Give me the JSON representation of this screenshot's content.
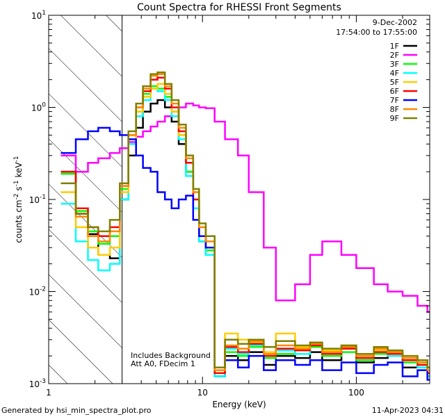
{
  "chart_data": {
    "type": "line",
    "title": "Count Spectra for RHESSI Front Segments",
    "xlabel": "Energy (keV)",
    "ylabel": "counts cm",
    "ylabel_sup1": "-2",
    "ylabel_mid": " s",
    "ylabel_sup2": "-1",
    "ylabel_end": " keV",
    "ylabel_sup3": "-1",
    "xscale": "log",
    "yscale": "log",
    "xlim": [
      1,
      300
    ],
    "ylim": [
      0.001,
      10
    ],
    "x_ticks": [
      {
        "value": 1,
        "label": "1"
      },
      {
        "value": 10,
        "label": "10"
      },
      {
        "value": 100,
        "label": "100"
      }
    ],
    "y_ticks": [
      {
        "value": 0.001,
        "base": "10",
        "exp": "-3"
      },
      {
        "value": 0.01,
        "base": "10",
        "exp": "-2"
      },
      {
        "value": 0.1,
        "base": "10",
        "exp": "-1"
      },
      {
        "value": 1,
        "base": "10",
        "exp": "0"
      },
      {
        "value": 10,
        "base": "10",
        "exp": "1"
      }
    ],
    "shaded_region": [
      1,
      3
    ],
    "date": "9-Dec-2002",
    "time_range": "17:54:00 to 17:55:00",
    "annotations": [
      "Includes Background",
      "Att A0, FDecim 1"
    ],
    "footer_left": "Generated by hsi_min_spectra_plot.pro",
    "footer_right": "11-Apr-2023 04:31",
    "series": [
      {
        "name": "1F",
        "color": "#000000",
        "x": [
          1.2,
          1.5,
          1.8,
          2.1,
          2.5,
          2.9,
          3.3,
          3.7,
          4.1,
          4.6,
          5.1,
          5.7,
          6.3,
          7.0,
          7.8,
          8.7,
          9.5,
          10.5,
          12,
          14,
          17,
          20,
          25,
          30,
          40,
          50,
          60,
          80,
          100,
          130,
          160,
          200,
          250,
          290
        ],
        "y": [
          0.2,
          0.07,
          0.042,
          0.025,
          0.023,
          0.1,
          0.3,
          0.6,
          0.9,
          1.1,
          1.2,
          1.0,
          0.7,
          0.4,
          0.2,
          0.08,
          0.035,
          0.025,
          0.0012,
          0.002,
          0.0018,
          0.0022,
          0.0016,
          0.002,
          0.0019,
          0.0022,
          0.0018,
          0.0024,
          0.0017,
          0.0019,
          0.0021,
          0.0015,
          0.0018,
          0.0012
        ]
      },
      {
        "name": "2F",
        "color": "#ff00ff",
        "x": [
          1.2,
          1.5,
          1.8,
          2.1,
          2.5,
          2.9,
          3.3,
          3.7,
          4.1,
          4.6,
          5.1,
          5.7,
          6.3,
          7.0,
          7.8,
          8.7,
          9.5,
          10.5,
          12,
          14,
          17,
          20,
          25,
          30,
          40,
          50,
          60,
          80,
          100,
          130,
          160,
          200,
          250,
          290
        ],
        "y": [
          0.3,
          0.2,
          0.25,
          0.28,
          0.32,
          0.36,
          0.42,
          0.48,
          0.55,
          0.62,
          0.7,
          0.8,
          0.9,
          1.0,
          1.1,
          1.05,
          1.0,
          0.98,
          0.7,
          0.45,
          0.3,
          0.12,
          0.03,
          0.008,
          0.012,
          0.025,
          0.035,
          0.025,
          0.018,
          0.012,
          0.01,
          0.009,
          0.007,
          0.006
        ]
      },
      {
        "name": "3F",
        "color": "#00ff00",
        "x": [
          1.2,
          1.5,
          1.8,
          2.1,
          2.5,
          2.9,
          3.3,
          3.7,
          4.1,
          4.6,
          5.1,
          5.7,
          6.3,
          7.0,
          7.8,
          8.7,
          9.5,
          10.5,
          12,
          14,
          17,
          20,
          25,
          30,
          40,
          50,
          60,
          80,
          100,
          130,
          160,
          200,
          250,
          290
        ],
        "y": [
          0.19,
          0.075,
          0.045,
          0.033,
          0.04,
          0.13,
          0.45,
          0.9,
          1.4,
          1.7,
          1.6,
          1.3,
          0.9,
          0.5,
          0.2,
          0.1,
          0.04,
          0.028,
          0.0013,
          0.0022,
          0.002,
          0.0025,
          0.0019,
          0.0021,
          0.0023,
          0.0025,
          0.002,
          0.0022,
          0.0018,
          0.0021,
          0.0022,
          0.0017,
          0.0016,
          0.0013
        ]
      },
      {
        "name": "4F",
        "color": "#00ffff",
        "x": [
          1.2,
          1.5,
          1.8,
          2.1,
          2.5,
          2.9,
          3.3,
          3.7,
          4.1,
          4.6,
          5.1,
          5.7,
          6.3,
          7.0,
          7.8,
          8.7,
          9.5,
          10.5,
          12,
          14,
          17,
          20,
          25,
          30,
          40,
          50,
          60,
          80,
          100,
          130,
          160,
          200,
          250,
          290
        ],
        "y": [
          0.09,
          0.035,
          0.022,
          0.017,
          0.02,
          0.1,
          0.4,
          0.8,
          1.2,
          1.6,
          1.5,
          1.2,
          0.8,
          0.45,
          0.18,
          0.08,
          0.035,
          0.025,
          0.0012,
          0.0024,
          0.0021,
          0.0026,
          0.002,
          0.0023,
          0.0021,
          0.0027,
          0.0022,
          0.0025,
          0.0019,
          0.0022,
          0.002,
          0.0018,
          0.0015,
          0.0012
        ]
      },
      {
        "name": "5F",
        "color": "#ffcc00",
        "x": [
          1.2,
          1.5,
          1.8,
          2.1,
          2.5,
          2.9,
          3.3,
          3.7,
          4.1,
          4.6,
          5.1,
          5.7,
          6.3,
          7.0,
          7.8,
          8.7,
          9.5,
          10.5,
          12,
          14,
          17,
          20,
          25,
          30,
          40,
          50,
          60,
          80,
          100,
          130,
          160,
          200,
          250,
          290
        ],
        "y": [
          0.12,
          0.05,
          0.03,
          0.025,
          0.03,
          0.12,
          0.45,
          0.9,
          1.3,
          1.6,
          1.8,
          1.4,
          0.9,
          0.5,
          0.25,
          0.12,
          0.05,
          0.03,
          0.0014,
          0.0035,
          0.003,
          0.0028,
          0.0022,
          0.0035,
          0.0025,
          0.0028,
          0.0023,
          0.0026,
          0.002,
          0.0023,
          0.0022,
          0.0019,
          0.0017,
          0.0013
        ]
      },
      {
        "name": "6F",
        "color": "#ff0000",
        "x": [
          1.2,
          1.5,
          1.8,
          2.1,
          2.5,
          2.9,
          3.3,
          3.7,
          4.1,
          4.6,
          5.1,
          5.7,
          6.3,
          7.0,
          7.8,
          8.7,
          9.5,
          10.5,
          12,
          14,
          17,
          20,
          25,
          30,
          40,
          50,
          60,
          80,
          100,
          130,
          160,
          200,
          250,
          290
        ],
        "y": [
          0.2,
          0.08,
          0.05,
          0.04,
          0.05,
          0.14,
          0.5,
          1.0,
          1.5,
          2.0,
          2.1,
          1.6,
          1.0,
          0.55,
          0.25,
          0.1,
          0.04,
          0.03,
          0.0013,
          0.0025,
          0.0022,
          0.0027,
          0.002,
          0.0024,
          0.0023,
          0.0026,
          0.0021,
          0.0024,
          0.0019,
          0.0022,
          0.0021,
          0.0018,
          0.0016,
          0.0013
        ]
      },
      {
        "name": "7F",
        "color": "#0000ff",
        "x": [
          1.2,
          1.5,
          1.8,
          2.1,
          2.5,
          2.9,
          3.3,
          3.7,
          4.1,
          4.6,
          5.1,
          5.7,
          6.3,
          7.0,
          7.8,
          8.7,
          9.5,
          10.5,
          12,
          14,
          17,
          20,
          25,
          30,
          40,
          50,
          60,
          80,
          100,
          130,
          160,
          200,
          250,
          290
        ],
        "y": [
          0.32,
          0.45,
          0.55,
          0.6,
          0.55,
          0.5,
          0.45,
          0.3,
          0.22,
          0.2,
          0.12,
          0.1,
          0.08,
          0.1,
          0.11,
          0.06,
          0.04,
          0.03,
          0.0015,
          0.0018,
          0.0015,
          0.002,
          0.0014,
          0.0018,
          0.0016,
          0.0018,
          0.0014,
          0.0017,
          0.0013,
          0.0016,
          0.0017,
          0.0012,
          0.0014,
          0.0011
        ]
      },
      {
        "name": "8F",
        "color": "#ff8800",
        "x": [
          1.2,
          1.5,
          1.8,
          2.1,
          2.5,
          2.9,
          3.3,
          3.7,
          4.1,
          4.6,
          5.1,
          5.7,
          6.3,
          7.0,
          7.8,
          8.7,
          9.5,
          10.5,
          12,
          14,
          17,
          20,
          25,
          30,
          40,
          50,
          60,
          80,
          100,
          130,
          160,
          200,
          250,
          290
        ],
        "y": [
          0.15,
          0.065,
          0.04,
          0.035,
          0.045,
          0.14,
          0.5,
          1.0,
          1.6,
          2.2,
          2.3,
          1.7,
          1.1,
          0.6,
          0.28,
          0.12,
          0.05,
          0.035,
          0.0014,
          0.0026,
          0.0024,
          0.0029,
          0.0021,
          0.0026,
          0.0024,
          0.0027,
          0.0022,
          0.0025,
          0.002,
          0.0024,
          0.0022,
          0.0019,
          0.0017,
          0.0014
        ]
      },
      {
        "name": "9F",
        "color": "#808000",
        "x": [
          1.2,
          1.5,
          1.8,
          2.1,
          2.5,
          2.9,
          3.3,
          3.7,
          4.1,
          4.6,
          5.1,
          5.7,
          6.3,
          7.0,
          7.8,
          8.7,
          9.5,
          10.5,
          12,
          14,
          17,
          20,
          25,
          30,
          40,
          50,
          60,
          80,
          100,
          130,
          160,
          200,
          250,
          290
        ],
        "y": [
          0.15,
          0.07,
          0.05,
          0.045,
          0.06,
          0.15,
          0.55,
          1.1,
          1.7,
          2.3,
          2.4,
          1.8,
          1.2,
          0.65,
          0.3,
          0.13,
          0.055,
          0.04,
          0.0015,
          0.003,
          0.0027,
          0.003,
          0.0025,
          0.0029,
          0.0026,
          0.0028,
          0.0024,
          0.0026,
          0.0021,
          0.0025,
          0.0023,
          0.002,
          0.0018,
          0.0015
        ]
      }
    ]
  }
}
